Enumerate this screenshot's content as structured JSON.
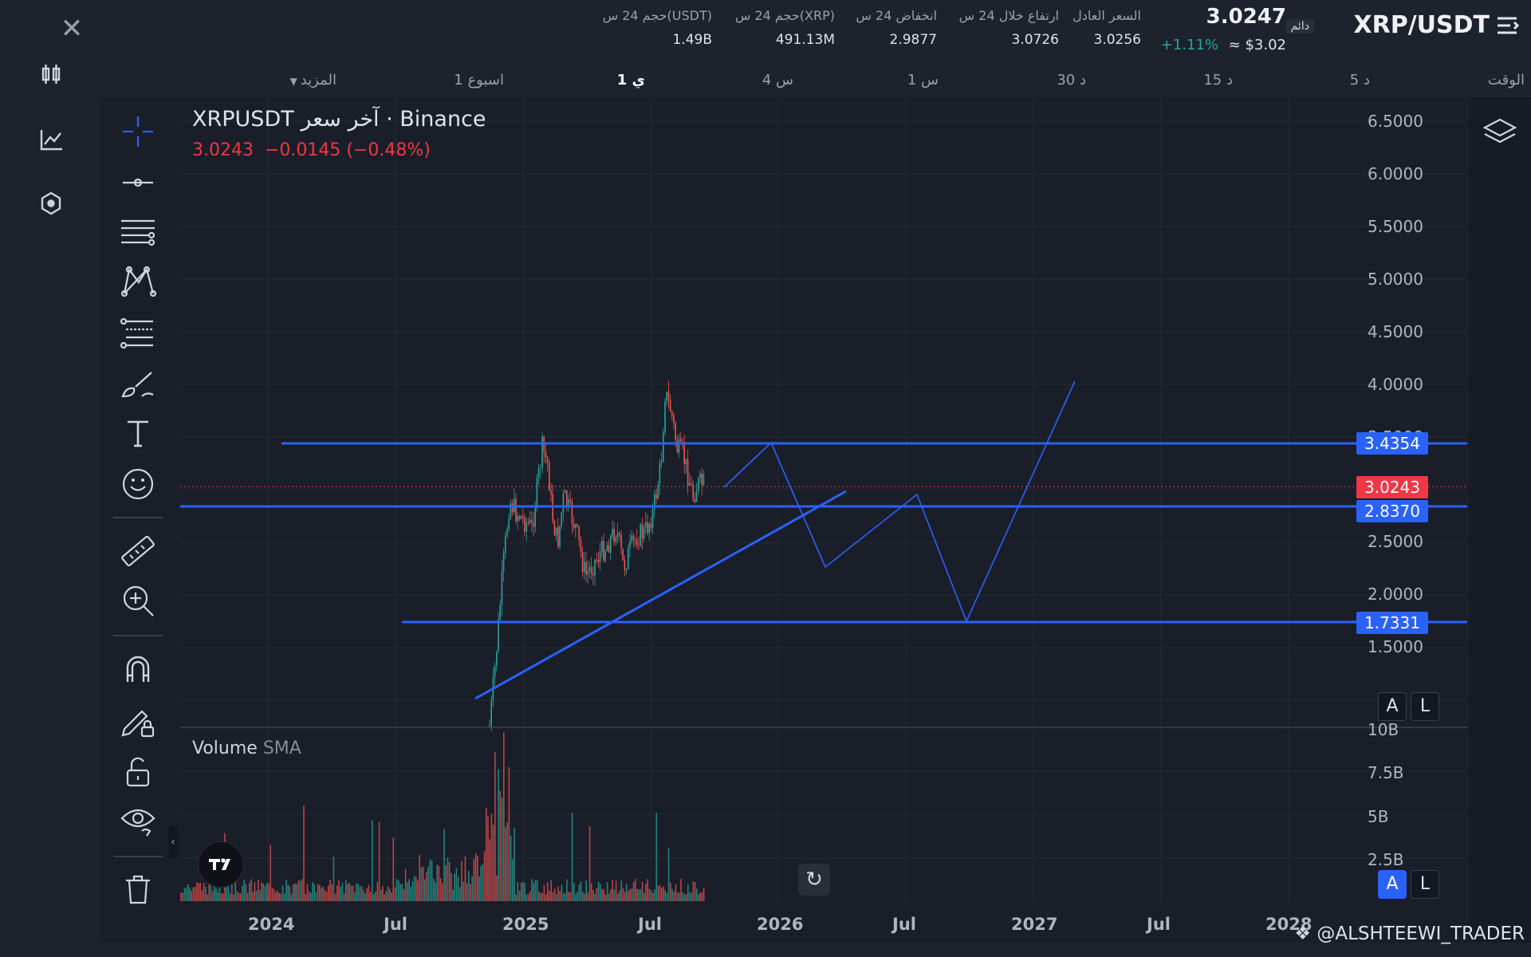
{
  "header": {
    "symbol": "XRP/USDT",
    "contract_type": "دائم",
    "last_price": "3.0247",
    "change_pct": "+1.11%",
    "approx_usd": "≈ $3.02",
    "stats": [
      {
        "label": "السعر العادل",
        "value": "3.0256"
      },
      {
        "label": "ارتفاع خلال 24 س",
        "value": "3.0726"
      },
      {
        "label": "انخفاض 24 س",
        "value": "2.9877"
      },
      {
        "label": "حجم 24 س(XRP)",
        "value": "491.13M"
      },
      {
        "label": "حجم 24 س(USDT)",
        "value": "1.49B"
      }
    ]
  },
  "timeframes": {
    "time_label": "الوقت",
    "items": [
      "5 د",
      "15 د",
      "30 د",
      "1 س",
      "4 س",
      "1 ي",
      "1 اسبوع",
      "المزيد"
    ],
    "active": "1 ي"
  },
  "legend": {
    "title": "XRPUSDT آخر سعر · Binance",
    "price": "3.0243",
    "change": "−0.0145 (−0.48%)"
  },
  "volume_legend": {
    "name": "Volume",
    "sub": "SMA"
  },
  "price_tags": [
    {
      "value": "3.4354",
      "color": "#2962ff"
    },
    {
      "value": "3.0243",
      "color": "#f23645"
    },
    {
      "value": "2.8370",
      "color": "#2962ff"
    },
    {
      "value": "1.7331",
      "color": "#2962ff"
    }
  ],
  "scale_buttons": {
    "auto": "A",
    "log": "L"
  },
  "watermark": "@ALSHTEEWI_TRADER",
  "icons": {
    "close": "close-icon",
    "sidebar": [
      "candles-icon",
      "indicator-icon",
      "settings-hex-icon"
    ],
    "menu": "menu-icon",
    "layers": "layers-icon",
    "refresh": "refresh-icon",
    "tools": [
      "crosshair-icon",
      "trend-line-icon",
      "horizontal-lines-icon",
      "pattern-icon",
      "fib-icon",
      "brush-icon",
      "text-icon",
      "emoji-icon",
      "ruler-icon",
      "zoom-in-icon",
      "magnet-icon",
      "lock-drawing-icon",
      "unlock-icon",
      "eye-icon",
      "trash-icon"
    ]
  },
  "chart_data": {
    "type": "candlestick",
    "price_axis": [
      "6.5000",
      "6.0000",
      "5.5000",
      "5.0000",
      "4.5000",
      "4.0000",
      "3.5000",
      "2.5000",
      "2.0000",
      "1.5000"
    ],
    "volume_axis": [
      "10B",
      "7.5B",
      "5B",
      "2.5B"
    ],
    "time_axis": [
      "2024",
      "Jul",
      "2025",
      "Jul",
      "2026",
      "Jul",
      "2027",
      "Jul",
      "2028"
    ],
    "horizontal_levels": [
      3.4354,
      2.837,
      1.7331
    ],
    "last_price_line": 3.0243
  }
}
